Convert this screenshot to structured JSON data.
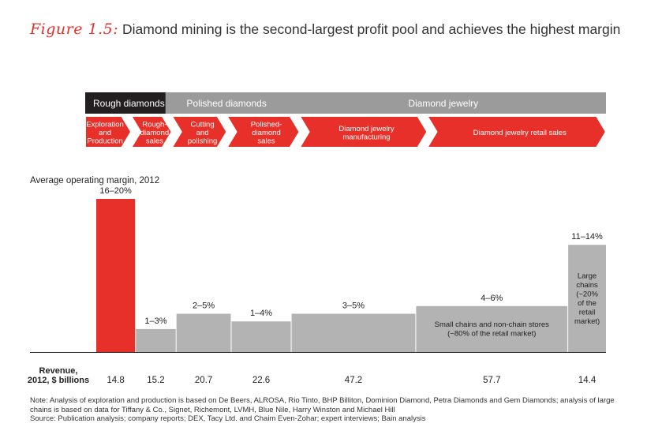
{
  "figure_label": "Figure 1.5:",
  "title": "Diamond mining is the second-largest profit pool and achieves the highest margin",
  "colors": {
    "accent": "#e8302a",
    "gray_bar": "#b3b3b3",
    "header_dark": "#231f20",
    "header_gray": "#9b9b9b"
  },
  "segments": [
    {
      "label": "Rough diamonds"
    },
    {
      "label": "Polished diamonds"
    },
    {
      "label": "Diamond jewelry"
    }
  ],
  "stages": [
    {
      "lines": [
        "Exploration",
        "and",
        "Production"
      ]
    },
    {
      "lines": [
        "Rough-",
        "diamond",
        "sales"
      ]
    },
    {
      "lines": [
        "Cutting",
        "and",
        "polishing"
      ]
    },
    {
      "lines": [
        "Polished-",
        "diamond",
        "sales"
      ]
    },
    {
      "lines": [
        "Diamond jewelry",
        "manufacturing"
      ]
    },
    {
      "lines": [
        "Diamond jewelry retail sales"
      ]
    }
  ],
  "chart_data": {
    "type": "bar",
    "variable_width": true,
    "ylabel": "Average operating margin, 2012",
    "xlabel_lines": [
      "Revenue,",
      "2012, $ billions"
    ],
    "categories": [
      "Exploration and Production",
      "Rough-diamond sales",
      "Cutting and polishing",
      "Polished-diamond sales",
      "Diamond jewelry manufacturing",
      "Small chains and non-chain stores",
      "Large chains"
    ],
    "margin_labels": [
      "16–20%",
      "1–3%",
      "2–5%",
      "1–4%",
      "3–5%",
      "4–6%",
      "11–14%"
    ],
    "margin_low": [
      16,
      1,
      2,
      1,
      3,
      4,
      11
    ],
    "margin_high": [
      20,
      3,
      5,
      4,
      5,
      6,
      14
    ],
    "revenue_billions": [
      14.8,
      15.2,
      20.7,
      22.6,
      47.2,
      57.7,
      14.4
    ],
    "revenue_labels": [
      "14.8",
      "15.2",
      "20.7",
      "22.6",
      "47.2",
      "57.7",
      "14.4"
    ],
    "inside_labels": [
      [],
      [],
      [],
      [],
      [],
      [
        "Small chains and non-chain stores",
        "(~80% of the retail market)"
      ],
      [
        "Large",
        "chains",
        "(~20%",
        "of the",
        "retail",
        "market)"
      ]
    ],
    "highlight_index": 0
  },
  "footnotes": {
    "note": "Note: Analysis of exploration and production is based on De Beers, ALROSA, Rio Tinto, BHP Billiton, Dominion Diamond, Petra Diamonds and Gem Diamonds; analysis of large chains is based on data for Tiffany & Co., Signet, Richemont, LVMH, Blue Nile, Harry Winston and Michael Hill",
    "source": "Source: Publication analysis; company reports; DEX, Tacy Ltd. and Chaim Even-Zohar; expert interviews; Bain analysis"
  }
}
